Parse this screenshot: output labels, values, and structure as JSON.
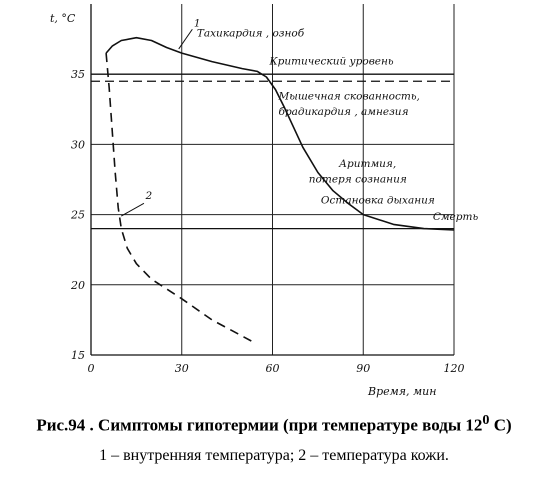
{
  "chart_data": {
    "type": "line",
    "ylabel": "t, °C",
    "xlabel": "Время, мин",
    "xlim": [
      0,
      120
    ],
    "ylim": [
      15,
      40
    ],
    "x_ticks": [
      "0",
      "30",
      "60",
      "90",
      "120"
    ],
    "y_ticks": [
      "15",
      "20",
      "25",
      "30",
      "35"
    ],
    "series": [
      {
        "name": "1",
        "style": "solid",
        "points": [
          [
            5,
            36.5
          ],
          [
            7,
            37.0
          ],
          [
            10,
            37.4
          ],
          [
            15,
            37.6
          ],
          [
            20,
            37.4
          ],
          [
            25,
            36.9
          ],
          [
            30,
            36.5
          ],
          [
            40,
            35.9
          ],
          [
            50,
            35.4
          ],
          [
            55,
            35.2
          ],
          [
            58,
            34.8
          ],
          [
            61,
            33.9
          ],
          [
            64,
            32.6
          ],
          [
            67,
            31.2
          ],
          [
            70,
            29.8
          ],
          [
            75,
            28.0
          ],
          [
            80,
            26.7
          ],
          [
            85,
            25.8
          ],
          [
            90,
            25.0
          ],
          [
            100,
            24.3
          ],
          [
            110,
            24.0
          ],
          [
            120,
            23.9
          ]
        ]
      },
      {
        "name": "2",
        "style": "dashed",
        "points": [
          [
            5,
            36.5
          ],
          [
            6,
            34.0
          ],
          [
            7,
            31.0
          ],
          [
            8,
            28.0
          ],
          [
            9,
            25.5
          ],
          [
            10,
            24.0
          ],
          [
            12,
            22.6
          ],
          [
            15,
            21.5
          ],
          [
            20,
            20.4
          ],
          [
            30,
            19.0
          ],
          [
            40,
            17.5
          ],
          [
            53,
            16.0
          ]
        ]
      }
    ],
    "reference_lines": [
      {
        "y": 35,
        "style": "solid",
        "label": "Критический уровень"
      },
      {
        "y": 34.5,
        "style": "dashed",
        "label": ""
      },
      {
        "y": 24,
        "style": "solid",
        "label": "Смерть"
      }
    ],
    "annotations": [
      {
        "text": "Тахикардия , озноб",
        "x": 35,
        "y": 37.7
      },
      {
        "text": "Критический уровень",
        "x": 59,
        "y": 35.7
      },
      {
        "text": "Мышечная скованность,",
        "x": 62,
        "y": 33.2
      },
      {
        "text": "брадикардия , амнезия",
        "x": 62,
        "y": 32.1
      },
      {
        "text": "Аритмия,",
        "x": 82,
        "y": 28.4
      },
      {
        "text": "потеря сознания",
        "x": 72,
        "y": 27.3
      },
      {
        "text": "Остановка дыхания",
        "x": 76,
        "y": 25.8
      },
      {
        "text": "Смерть",
        "x": 113,
        "y": 24.6
      },
      {
        "text": "1",
        "x": 34,
        "y": 38.4
      },
      {
        "text": "2",
        "x": 18,
        "y": 26.1
      }
    ],
    "grid": true
  },
  "caption": {
    "title": "Рис.94 . Симптомы гипотермии (при температуре воды 12",
    "title_sup": "0",
    "title_end": " C)",
    "subtitle": "1 – внутренняя температура; 2 – температура кожи."
  }
}
